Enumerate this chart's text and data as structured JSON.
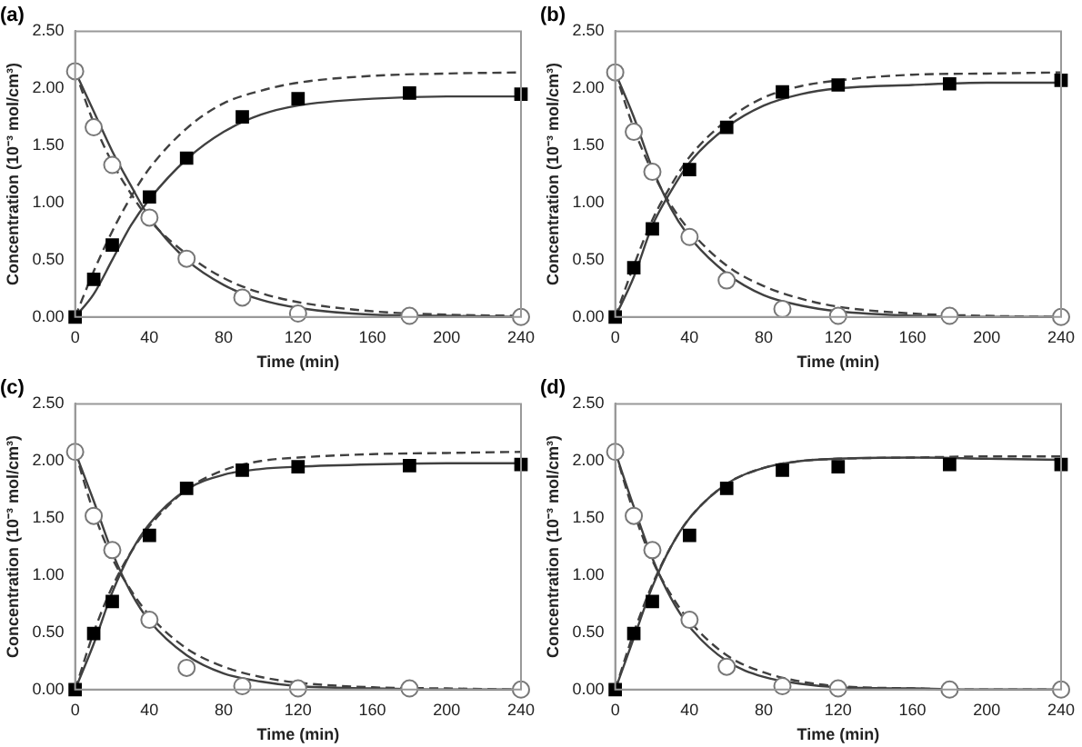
{
  "chart_data": [
    {
      "type": "scatter",
      "title": "(a)",
      "xlabel": "Time (min)",
      "ylabel": "Concentration (10⁻³ mol/cm³)",
      "xlim": [
        0,
        240
      ],
      "xticks": [
        0,
        40,
        80,
        120,
        160,
        200,
        240
      ],
      "ylim": [
        0,
        2.5
      ],
      "yticks": [
        {
          "value": 0,
          "label": "0.00"
        },
        {
          "value": 0.5,
          "label": "0.50"
        },
        {
          "value": 1,
          "label": "1.00"
        },
        {
          "value": 1.5,
          "label": "1.50"
        },
        {
          "value": 2,
          "label": "2.00"
        },
        {
          "value": 2.5,
          "label": "2.50"
        }
      ],
      "grid": false,
      "legend": false,
      "series": [
        {
          "type": "line",
          "color": "#404040",
          "line_style": "solid",
          "marker": "none",
          "x": [
            0,
            10,
            20,
            30,
            40,
            60,
            80,
            100,
            120,
            160,
            200,
            240
          ],
          "values": [
            0,
            0.2,
            0.5,
            0.8,
            1.03,
            1.38,
            1.62,
            1.77,
            1.85,
            1.91,
            1.93,
            1.93
          ]
        },
        {
          "type": "line",
          "color": "#404040",
          "line_style": "dashed",
          "marker": "none",
          "x": [
            0,
            10,
            20,
            30,
            40,
            60,
            80,
            100,
            120,
            160,
            200,
            240
          ],
          "values": [
            0,
            0.4,
            0.75,
            1.05,
            1.3,
            1.65,
            1.87,
            1.98,
            2.05,
            2.11,
            2.13,
            2.14
          ]
        },
        {
          "type": "line",
          "color": "#404040",
          "line_style": "solid",
          "marker": "none",
          "x": [
            0,
            10,
            20,
            30,
            40,
            60,
            80,
            100,
            120,
            160,
            200,
            240
          ],
          "values": [
            2.15,
            1.8,
            1.45,
            1.15,
            0.87,
            0.5,
            0.28,
            0.15,
            0.08,
            0.02,
            0.01,
            0
          ]
        },
        {
          "type": "line",
          "color": "#404040",
          "line_style": "dashed",
          "marker": "none",
          "x": [
            0,
            10,
            20,
            30,
            40,
            60,
            80,
            100,
            120,
            160,
            200,
            240
          ],
          "values": [
            2.15,
            1.7,
            1.35,
            1.08,
            0.85,
            0.55,
            0.34,
            0.21,
            0.13,
            0.05,
            0.02,
            0.01
          ]
        },
        {
          "color": "#000000",
          "marker": "square",
          "x": [
            0,
            10,
            20,
            40,
            60,
            90,
            120,
            180,
            240
          ],
          "values": [
            0,
            0.33,
            0.63,
            1.05,
            1.39,
            1.75,
            1.91,
            1.96,
            1.95
          ]
        },
        {
          "color": "#ffffff",
          "marker": "circle",
          "x": [
            0,
            10,
            20,
            40,
            60,
            90,
            120,
            180,
            240
          ],
          "values": [
            2.15,
            1.66,
            1.33,
            0.87,
            0.51,
            0.17,
            0.03,
            0.01,
            0
          ]
        }
      ]
    },
    {
      "type": "scatter",
      "title": "(b)",
      "xlabel": "Time (min)",
      "ylabel": "Concentration (10⁻³ mol/cm³)",
      "xlim": [
        0,
        240
      ],
      "xticks": [
        0,
        40,
        80,
        120,
        160,
        200,
        240
      ],
      "ylim": [
        0,
        2.5
      ],
      "yticks": [
        {
          "value": 0,
          "label": "0.00"
        },
        {
          "value": 0.5,
          "label": "0.50"
        },
        {
          "value": 1,
          "label": "1.00"
        },
        {
          "value": 1.5,
          "label": "1.50"
        },
        {
          "value": 2,
          "label": "2.00"
        },
        {
          "value": 2.5,
          "label": "2.50"
        }
      ],
      "grid": false,
      "legend": false,
      "series": [
        {
          "type": "line",
          "color": "#404040",
          "line_style": "solid",
          "marker": "none",
          "x": [
            0,
            10,
            20,
            30,
            40,
            60,
            80,
            100,
            120,
            160,
            200,
            240
          ],
          "values": [
            0,
            0.35,
            0.8,
            1.1,
            1.35,
            1.66,
            1.85,
            1.95,
            2.0,
            2.03,
            2.05,
            2.05
          ]
        },
        {
          "type": "line",
          "color": "#404040",
          "line_style": "dashed",
          "marker": "none",
          "x": [
            0,
            10,
            20,
            30,
            40,
            60,
            80,
            100,
            120,
            160,
            200,
            240
          ],
          "values": [
            0,
            0.45,
            0.85,
            1.15,
            1.4,
            1.72,
            1.92,
            2.02,
            2.07,
            2.12,
            2.13,
            2.14
          ]
        },
        {
          "type": "line",
          "color": "#404040",
          "line_style": "solid",
          "marker": "none",
          "x": [
            0,
            10,
            20,
            30,
            40,
            60,
            80,
            100,
            120,
            160,
            200,
            240
          ],
          "values": [
            2.14,
            1.75,
            1.3,
            0.95,
            0.7,
            0.38,
            0.19,
            0.1,
            0.05,
            0.01,
            0,
            0
          ]
        },
        {
          "type": "line",
          "color": "#404040",
          "line_style": "dashed",
          "marker": "none",
          "x": [
            0,
            10,
            20,
            30,
            40,
            60,
            80,
            100,
            120,
            160,
            200,
            240
          ],
          "values": [
            2.14,
            1.65,
            1.27,
            0.98,
            0.76,
            0.45,
            0.27,
            0.16,
            0.09,
            0.03,
            0.01,
            0
          ]
        },
        {
          "color": "#000000",
          "marker": "square",
          "x": [
            0,
            10,
            20,
            40,
            60,
            90,
            120,
            180,
            240
          ],
          "values": [
            0,
            0.43,
            0.77,
            1.29,
            1.66,
            1.97,
            2.03,
            2.04,
            2.07
          ]
        },
        {
          "color": "#ffffff",
          "marker": "circle",
          "x": [
            0,
            10,
            20,
            40,
            60,
            90,
            120,
            180,
            240
          ],
          "values": [
            2.14,
            1.62,
            1.27,
            0.7,
            0.32,
            0.07,
            0.01,
            0.01,
            0
          ]
        }
      ]
    },
    {
      "type": "scatter",
      "title": "(c)",
      "xlabel": "Time (min)",
      "ylabel": "Concentration (10⁻³ mol/cm³)",
      "xlim": [
        0,
        240
      ],
      "xticks": [
        0,
        40,
        80,
        120,
        160,
        200,
        240
      ],
      "ylim": [
        0,
        2.5
      ],
      "yticks": [
        {
          "value": 0,
          "label": "0.00"
        },
        {
          "value": 0.5,
          "label": "0.50"
        },
        {
          "value": 1,
          "label": "1.00"
        },
        {
          "value": 1.5,
          "label": "1.50"
        },
        {
          "value": 2,
          "label": "2.00"
        },
        {
          "value": 2.5,
          "label": "2.50"
        }
      ],
      "grid": false,
      "legend": false,
      "series": [
        {
          "type": "line",
          "color": "#404040",
          "line_style": "solid",
          "marker": "none",
          "x": [
            0,
            10,
            20,
            30,
            40,
            60,
            80,
            100,
            120,
            160,
            200,
            240
          ],
          "values": [
            0,
            0.4,
            0.85,
            1.2,
            1.45,
            1.75,
            1.88,
            1.93,
            1.95,
            1.97,
            1.98,
            1.98
          ]
        },
        {
          "type": "line",
          "color": "#404040",
          "line_style": "dashed",
          "marker": "none",
          "x": [
            0,
            10,
            20,
            30,
            40,
            60,
            80,
            100,
            120,
            160,
            200,
            240
          ],
          "values": [
            0,
            0.5,
            0.9,
            1.2,
            1.43,
            1.75,
            1.92,
            2.0,
            2.03,
            2.06,
            2.07,
            2.08
          ]
        },
        {
          "type": "line",
          "color": "#404040",
          "line_style": "solid",
          "marker": "none",
          "x": [
            0,
            10,
            20,
            30,
            40,
            60,
            80,
            100,
            120,
            160,
            200,
            240
          ],
          "values": [
            2.08,
            1.65,
            1.2,
            0.85,
            0.6,
            0.3,
            0.14,
            0.07,
            0.03,
            0.01,
            0,
            0
          ]
        },
        {
          "type": "line",
          "color": "#404040",
          "line_style": "dashed",
          "marker": "none",
          "x": [
            0,
            10,
            20,
            30,
            40,
            60,
            80,
            100,
            120,
            160,
            200,
            240
          ],
          "values": [
            2.08,
            1.55,
            1.15,
            0.87,
            0.65,
            0.36,
            0.2,
            0.11,
            0.06,
            0.02,
            0.01,
            0
          ]
        },
        {
          "color": "#000000",
          "marker": "square",
          "x": [
            0,
            10,
            20,
            40,
            60,
            90,
            120,
            180,
            240
          ],
          "values": [
            0,
            0.49,
            0.77,
            1.35,
            1.76,
            1.92,
            1.95,
            1.96,
            1.97
          ]
        },
        {
          "color": "#ffffff",
          "marker": "circle",
          "x": [
            0,
            10,
            20,
            40,
            60,
            90,
            120,
            180,
            240
          ],
          "values": [
            2.08,
            1.52,
            1.22,
            0.61,
            0.19,
            0.03,
            0.01,
            0.01,
            0
          ]
        }
      ]
    },
    {
      "type": "scatter",
      "title": "(d)",
      "xlabel": "Time (min)",
      "ylabel": "Concentration (10⁻³ mol/cm³)",
      "xlim": [
        0,
        240
      ],
      "xticks": [
        0,
        40,
        80,
        120,
        160,
        200,
        240
      ],
      "ylim": [
        0,
        2.5
      ],
      "yticks": [
        {
          "value": 0,
          "label": "0.00"
        },
        {
          "value": 0.5,
          "label": "0.50"
        },
        {
          "value": 1,
          "label": "1.00"
        },
        {
          "value": 1.5,
          "label": "1.50"
        },
        {
          "value": 2,
          "label": "2.00"
        },
        {
          "value": 2.5,
          "label": "2.50"
        }
      ],
      "grid": false,
      "legend": false,
      "series": [
        {
          "type": "line",
          "color": "#404040",
          "line_style": "solid",
          "marker": "none",
          "x": [
            0,
            10,
            20,
            30,
            40,
            60,
            80,
            100,
            120,
            160,
            200,
            240
          ],
          "values": [
            0,
            0.45,
            0.9,
            1.25,
            1.5,
            1.8,
            1.94,
            2.0,
            2.02,
            2.03,
            2.02,
            2.01
          ]
        },
        {
          "type": "line",
          "color": "#404040",
          "line_style": "dashed",
          "marker": "none",
          "x": [
            0,
            10,
            20,
            30,
            40,
            60,
            80,
            100,
            120,
            160,
            200,
            240
          ],
          "values": [
            0,
            0.5,
            0.92,
            1.25,
            1.5,
            1.8,
            1.94,
            2.0,
            2.02,
            2.03,
            2.04,
            2.04
          ]
        },
        {
          "type": "line",
          "color": "#404040",
          "line_style": "solid",
          "marker": "none",
          "x": [
            0,
            10,
            20,
            30,
            40,
            60,
            80,
            100,
            120,
            160,
            200,
            240
          ],
          "values": [
            2.08,
            1.6,
            1.15,
            0.8,
            0.55,
            0.25,
            0.11,
            0.05,
            0.02,
            0.01,
            0,
            0
          ]
        },
        {
          "type": "line",
          "color": "#404040",
          "line_style": "dashed",
          "marker": "none",
          "x": [
            0,
            10,
            20,
            30,
            40,
            60,
            80,
            100,
            120,
            160,
            200,
            240
          ],
          "values": [
            2.08,
            1.55,
            1.13,
            0.83,
            0.6,
            0.3,
            0.15,
            0.07,
            0.03,
            0.01,
            0,
            0
          ]
        },
        {
          "color": "#000000",
          "marker": "square",
          "x": [
            0,
            10,
            20,
            40,
            60,
            90,
            120,
            180,
            240
          ],
          "values": [
            0,
            0.49,
            0.77,
            1.35,
            1.76,
            1.92,
            1.95,
            1.97,
            1.97
          ]
        },
        {
          "color": "#ffffff",
          "marker": "circle",
          "x": [
            0,
            10,
            20,
            40,
            60,
            90,
            120,
            180,
            240
          ],
          "values": [
            2.08,
            1.52,
            1.22,
            0.61,
            0.2,
            0.03,
            0.01,
            0,
            0
          ]
        }
      ]
    }
  ]
}
